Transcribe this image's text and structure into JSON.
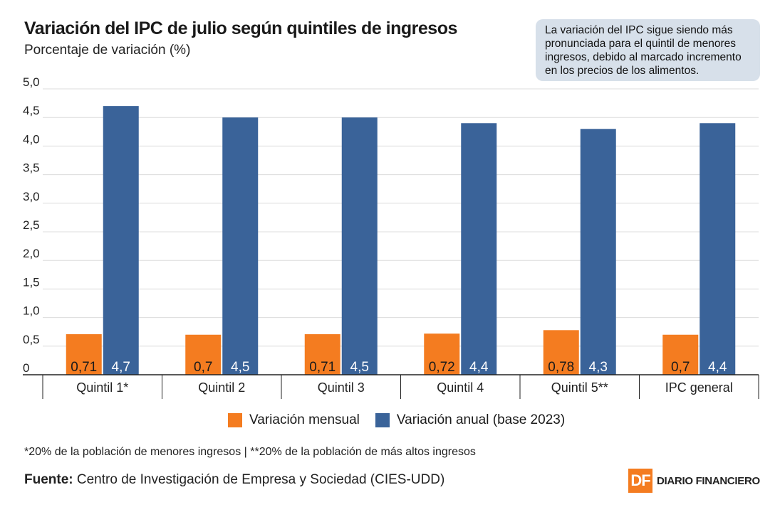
{
  "header": {
    "title": "Variación del IPC de julio según quintiles de ingresos",
    "subtitle": "Porcentaje de variación (%)"
  },
  "note": "La variación del IPC sigue siendo más pronunciada para el quintil de menores ingresos, debido al marcado incremento en los precios de los alimentos.",
  "colors": {
    "monthly": "#f47c20",
    "annual": "#3a6399"
  },
  "chart_data": {
    "type": "bar",
    "title": "Variación del IPC de julio según quintiles de ingresos",
    "ylabel": "Porcentaje de variación (%)",
    "xlabel": "",
    "ylim": [
      0,
      5.0
    ],
    "yticks": [
      "0",
      "0,5",
      "1,0",
      "1,5",
      "2,0",
      "2,5",
      "3,0",
      "3,5",
      "4,0",
      "4,5",
      "5,0"
    ],
    "grid": true,
    "categories": [
      "Quintil 1*",
      "Quintil 2",
      "Quintil 3",
      "Quintil 4",
      "Quintil 5**",
      "IPC general"
    ],
    "series": [
      {
        "name": "Variación mensual",
        "values": [
          0.71,
          0.7,
          0.71,
          0.72,
          0.78,
          0.7
        ],
        "labels": [
          "0,71",
          "0,7",
          "0,71",
          "0,72",
          "0,78",
          "0,7"
        ]
      },
      {
        "name": "Variación anual (base 2023)",
        "values": [
          4.7,
          4.5,
          4.5,
          4.4,
          4.3,
          4.4
        ],
        "labels": [
          "4,7",
          "4,5",
          "4,5",
          "4,4",
          "4,3",
          "4,4"
        ]
      }
    ],
    "legend": "bottom-center"
  },
  "legend": {
    "monthly_label": "Variación mensual",
    "annual_label": "Variación anual (base 2023)"
  },
  "footnote": "*20% de la población de menores ingresos | **20% de la población de más altos ingresos",
  "source": {
    "label": "Fuente:",
    "text": "Centro de Investigación de Empresa y Sociedad (CIES-UDD)"
  },
  "logo": {
    "badge": "DF",
    "text": "DIARIO FINANCIERO"
  }
}
